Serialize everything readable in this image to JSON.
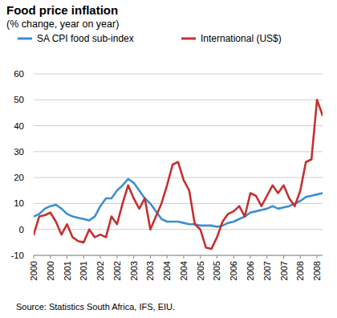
{
  "chart_data": {
    "type": "line",
    "title": "Food price inflation",
    "subtitle": "(% change, year on year)",
    "source": "Source: Statistics South Africa, IFS, EIU.",
    "categories": [
      "2000",
      null,
      null,
      "2000",
      null,
      null,
      "2001",
      null,
      null,
      "2001",
      null,
      null,
      "2002",
      null,
      null,
      "2002",
      null,
      null,
      "2003",
      null,
      null,
      "2003",
      null,
      null,
      "2004",
      null,
      null,
      "2004",
      null,
      null,
      "2005",
      null,
      null,
      "2005",
      null,
      null,
      "2006",
      null,
      null,
      "2006",
      null,
      null,
      "2007",
      null,
      null,
      "2007",
      null,
      null,
      "2008",
      null,
      null,
      "2008",
      null
    ],
    "series": [
      {
        "name": "SA CPI food sub-index",
        "color": "#3d8fd1",
        "values": [
          5,
          6,
          8,
          9,
          9.5,
          8,
          6,
          5,
          4.5,
          4,
          3.5,
          5,
          9,
          12,
          12,
          15,
          17,
          19.5,
          18,
          15,
          12,
          10,
          7,
          4,
          3,
          3,
          3,
          2.5,
          2,
          2,
          1.5,
          1.5,
          1.5,
          1,
          1.5,
          2.5,
          3,
          4,
          5,
          6.5,
          7,
          7.5,
          8,
          9,
          8,
          8.5,
          9,
          10,
          11,
          12.5,
          13,
          13.5,
          14
        ]
      },
      {
        "name": "International (US$)",
        "color": "#c4312f",
        "values": [
          -2,
          5,
          5.5,
          6.5,
          3,
          -2,
          2,
          -3,
          -4.5,
          -5,
          0,
          -3,
          -2,
          -3,
          5,
          2,
          10,
          17,
          12,
          8,
          12,
          0,
          5,
          10,
          17,
          25,
          26,
          19,
          15,
          2,
          0,
          -7,
          -7.5,
          -3,
          3,
          6,
          7,
          9,
          5,
          14,
          13,
          9,
          13,
          17,
          14,
          17,
          12,
          9,
          15,
          26,
          27,
          50,
          44
        ]
      }
    ],
    "ylim": [
      -10,
      60
    ],
    "yticks": [
      -10,
      0,
      10,
      20,
      30,
      40,
      50,
      60
    ],
    "grid": true,
    "legend": "top-left"
  }
}
